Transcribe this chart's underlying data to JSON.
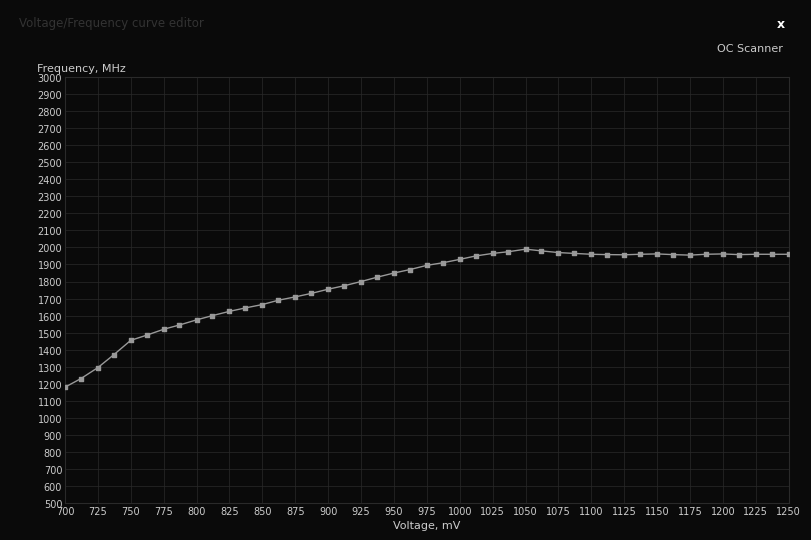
{
  "title": "Voltage/Frequency curve editor",
  "subtitle": "OC Scanner",
  "xlabel": "Voltage, mV",
  "ylabel": "Frequency, MHz",
  "title_bar_color": "#f0f0f0",
  "title_text_color": "#333333",
  "oc_bar_color": "#111111",
  "oc_text_color": "#cccccc",
  "plot_bg_color": "#0a0a0a",
  "fig_bg_color": "#0a0a0a",
  "grid_color": "#2a2a2a",
  "line_color": "#999999",
  "marker_color": "#999999",
  "axis_text_color": "#cccccc",
  "btn_color": "#cc2222",
  "xlim": [
    700,
    1250
  ],
  "ylim": [
    500,
    3000
  ],
  "xticks": [
    700,
    725,
    750,
    775,
    800,
    825,
    850,
    875,
    900,
    925,
    950,
    975,
    1000,
    1025,
    1050,
    1075,
    1100,
    1125,
    1150,
    1175,
    1200,
    1225,
    1250
  ],
  "yticks": [
    500,
    600,
    700,
    800,
    900,
    1000,
    1100,
    1200,
    1300,
    1400,
    1500,
    1600,
    1700,
    1800,
    1900,
    2000,
    2100,
    2200,
    2300,
    2400,
    2500,
    2600,
    2700,
    2800,
    2900,
    3000
  ],
  "voltage": [
    700,
    712,
    725,
    737,
    750,
    762,
    775,
    787,
    800,
    812,
    825,
    837,
    850,
    862,
    875,
    887,
    900,
    912,
    925,
    937,
    950,
    962,
    975,
    987,
    1000,
    1012,
    1025,
    1037,
    1050,
    1062,
    1075,
    1087,
    1100,
    1112,
    1125,
    1137,
    1150,
    1162,
    1175,
    1187,
    1200,
    1212,
    1225,
    1237,
    1250
  ],
  "frequency": [
    1180,
    1230,
    1295,
    1370,
    1455,
    1485,
    1520,
    1545,
    1575,
    1600,
    1625,
    1645,
    1665,
    1690,
    1710,
    1730,
    1755,
    1775,
    1800,
    1825,
    1850,
    1870,
    1895,
    1910,
    1930,
    1950,
    1965,
    1975,
    1990,
    1980,
    1970,
    1965,
    1960,
    1958,
    1957,
    1960,
    1962,
    1958,
    1955,
    1960,
    1962,
    1958,
    1960,
    1960,
    1960
  ]
}
